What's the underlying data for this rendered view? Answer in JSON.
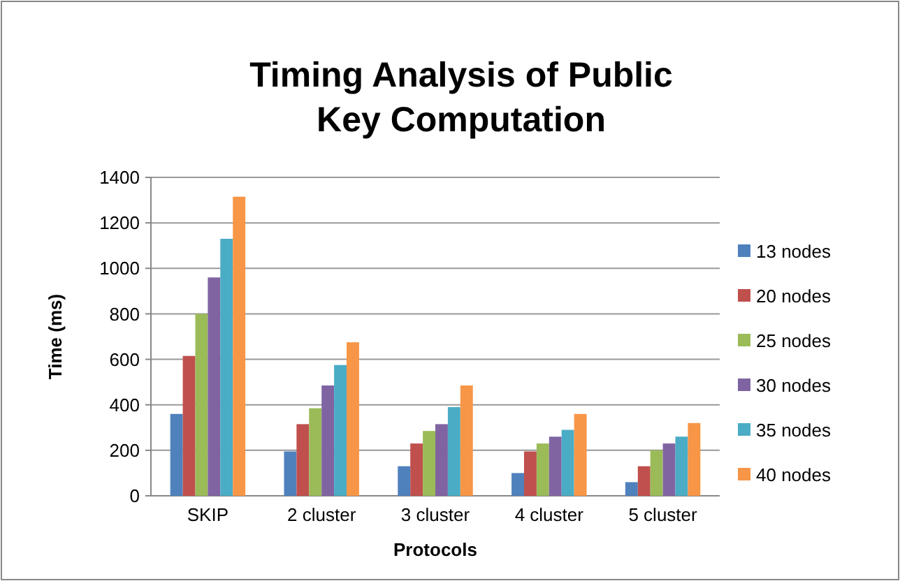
{
  "chart_data": {
    "type": "bar",
    "title": "Timing Analysis of Public Key Computation",
    "xlabel": "Protocols",
    "ylabel": "Time (ms)",
    "categories": [
      "SKIP",
      "2 cluster",
      "3 cluster",
      "4 cluster",
      "5 cluster"
    ],
    "series": [
      {
        "name": "13 nodes",
        "color": "#4f81bd",
        "values": [
          360,
          195,
          130,
          100,
          60
        ]
      },
      {
        "name": "20 nodes",
        "color": "#c0504d",
        "values": [
          615,
          315,
          230,
          195,
          130
        ]
      },
      {
        "name": "25 nodes",
        "color": "#9bbb59",
        "values": [
          800,
          385,
          285,
          230,
          200
        ]
      },
      {
        "name": "30 nodes",
        "color": "#8064a2",
        "values": [
          960,
          485,
          315,
          260,
          230
        ]
      },
      {
        "name": "35 nodes",
        "color": "#4bacc6",
        "values": [
          1130,
          575,
          390,
          290,
          260
        ]
      },
      {
        "name": "40 nodes",
        "color": "#f79646",
        "values": [
          1315,
          675,
          485,
          360,
          320
        ]
      }
    ],
    "ylim": [
      0,
      1400
    ],
    "yticks": [
      0,
      200,
      400,
      600,
      800,
      1000,
      1200,
      1400
    ],
    "grid": "y",
    "legend": "right"
  }
}
